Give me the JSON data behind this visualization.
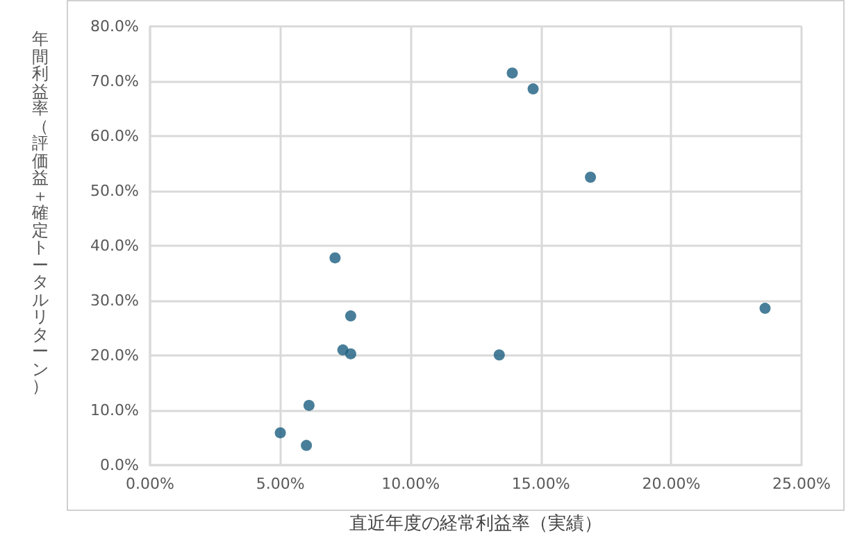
{
  "chart_data": {
    "type": "scatter",
    "xlabel": "直近年度の経常利益率（実績）",
    "ylabel": "年間利益率（評価益＋確定トータルリターン）",
    "x": [
      13.9,
      14.7,
      16.9,
      7.1,
      23.6,
      7.7,
      7.4,
      7.7,
      13.4,
      6.1,
      5.0,
      6.0
    ],
    "series": [
      {
        "color": "#1a5e80",
        "values": [
          71.5,
          68.6,
          52.5,
          37.8,
          28.6,
          27.2,
          21.0,
          20.3,
          20.1,
          10.9,
          5.9,
          3.6
        ]
      }
    ],
    "xlim": [
      0,
      25
    ],
    "xticks": [
      {
        "value": 0,
        "label": "0.00%"
      },
      {
        "value": 5,
        "label": "5.00%"
      },
      {
        "value": 10,
        "label": "10.00%"
      },
      {
        "value": 15,
        "label": "15.00%"
      },
      {
        "value": 20,
        "label": "20.00%"
      },
      {
        "value": 25,
        "label": "25.00%"
      }
    ],
    "ylim": [
      0,
      80
    ],
    "yticks": [
      {
        "value": 0,
        "label": "0.0%"
      },
      {
        "value": 10,
        "label": "10.0%"
      },
      {
        "value": 20,
        "label": "20.0%"
      },
      {
        "value": 30,
        "label": "30.0%"
      },
      {
        "value": 40,
        "label": "40.0%"
      },
      {
        "value": 50,
        "label": "50.0%"
      },
      {
        "value": 60,
        "label": "60.0%"
      },
      {
        "value": 70,
        "label": "70.0%"
      },
      {
        "value": 80,
        "label": "80.0%"
      }
    ],
    "grid": true,
    "marker": "circle"
  }
}
